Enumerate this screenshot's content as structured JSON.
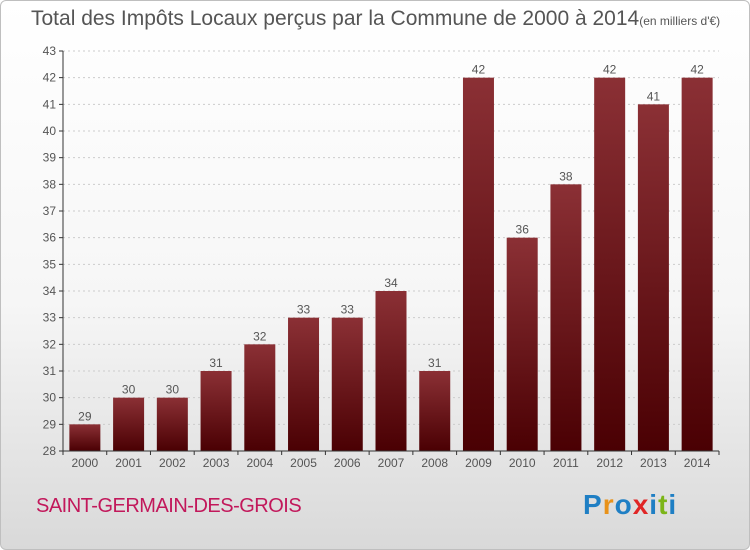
{
  "title": {
    "main": "Total des Impôts Locaux perçus par la Commune de 2000 à 2014",
    "unit": "(en milliers d'€)"
  },
  "commune": "SAINT-GERMAIN-DES-GROIS",
  "logo": {
    "text": "Proxiti",
    "letter_colors": [
      "#1f7fc4",
      "#e8921a",
      "#1f7fc4",
      "#e02626",
      "#1f7fc4",
      "#7cb518",
      "#1f7fc4"
    ]
  },
  "colors": {
    "bar_top": "#8b3035",
    "bar_bottom": "#4a0003",
    "axis": "#333333",
    "grid": "#cccccc",
    "text": "#555555"
  },
  "chart_data": {
    "type": "bar",
    "title": "Total des Impôts Locaux perçus par la Commune de 2000 à 2014",
    "xlabel": "",
    "ylabel": "",
    "ylim": [
      28,
      43
    ],
    "yticks": [
      28,
      29,
      30,
      31,
      32,
      33,
      34,
      35,
      36,
      37,
      38,
      39,
      40,
      41,
      42,
      43
    ],
    "categories": [
      "2000",
      "2001",
      "2002",
      "2003",
      "2004",
      "2005",
      "2006",
      "2007",
      "2008",
      "2009",
      "2010",
      "2011",
      "2012",
      "2013",
      "2014"
    ],
    "values": [
      29,
      30,
      30,
      31,
      32,
      33,
      33,
      34,
      31,
      42,
      36,
      38,
      42,
      41,
      42
    ],
    "grid": true,
    "legend": false
  }
}
